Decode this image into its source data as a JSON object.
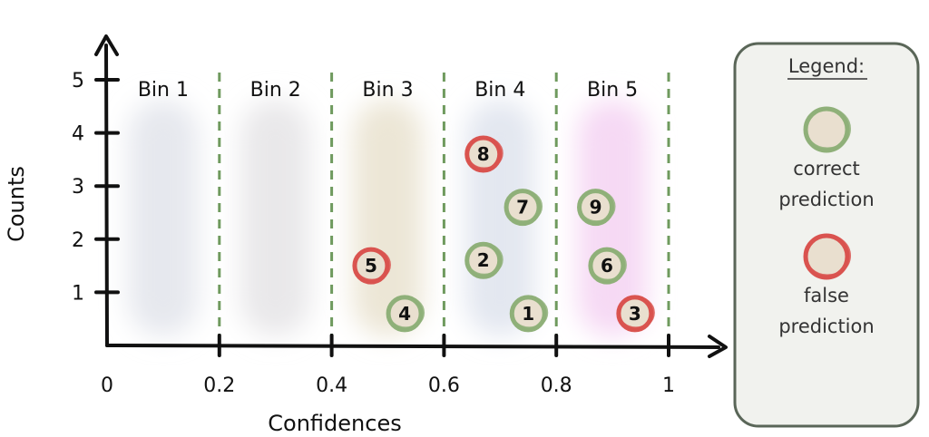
{
  "chart_data": {
    "type": "scatter",
    "xlabel": "Confidences",
    "ylabel": "Counts",
    "xlim": [
      0,
      1
    ],
    "ylim": [
      0,
      5
    ],
    "x_ticks": [
      "0",
      "0.2",
      "0.4",
      "0.6",
      "0.8",
      "1"
    ],
    "y_ticks": [
      "1",
      "2",
      "3",
      "4",
      "5"
    ],
    "bins": [
      {
        "label": "Bin 1",
        "range": [
          0.0,
          0.2
        ],
        "shade": "#e6e8ee"
      },
      {
        "label": "Bin 2",
        "range": [
          0.2,
          0.4
        ],
        "shade": "#e9e8ea"
      },
      {
        "label": "Bin 3",
        "range": [
          0.4,
          0.6
        ],
        "shade": "#ece6d6"
      },
      {
        "label": "Bin 4",
        "range": [
          0.6,
          0.8
        ],
        "shade": "#e3e7f0"
      },
      {
        "label": "Bin 5",
        "range": [
          0.8,
          1.0
        ],
        "shade": "#f6d9f4"
      }
    ],
    "points": [
      {
        "label": "1",
        "x": 0.75,
        "y": 0.6,
        "correct": true
      },
      {
        "label": "2",
        "x": 0.67,
        "y": 1.6,
        "correct": true
      },
      {
        "label": "3",
        "x": 0.94,
        "y": 0.6,
        "correct": false
      },
      {
        "label": "4",
        "x": 0.53,
        "y": 0.6,
        "correct": true
      },
      {
        "label": "5",
        "x": 0.47,
        "y": 1.5,
        "correct": false
      },
      {
        "label": "6",
        "x": 0.89,
        "y": 1.5,
        "correct": true
      },
      {
        "label": "7",
        "x": 0.74,
        "y": 2.6,
        "correct": true
      },
      {
        "label": "8",
        "x": 0.67,
        "y": 3.6,
        "correct": false
      },
      {
        "label": "9",
        "x": 0.87,
        "y": 2.6,
        "correct": true
      }
    ],
    "legend": {
      "title": "Legend:",
      "items": [
        {
          "line1": "correct",
          "line2": "prediction",
          "correct": true
        },
        {
          "line1": "false",
          "line2": "prediction",
          "correct": false
        }
      ]
    },
    "colors": {
      "correct_ring": "#8fb079",
      "false_ring": "#d9534f",
      "marker_fill": "#e9dfcf",
      "divider": "#6f9a5e",
      "legend_border": "#5a6658",
      "legend_bg": "#f1f2ee"
    }
  }
}
